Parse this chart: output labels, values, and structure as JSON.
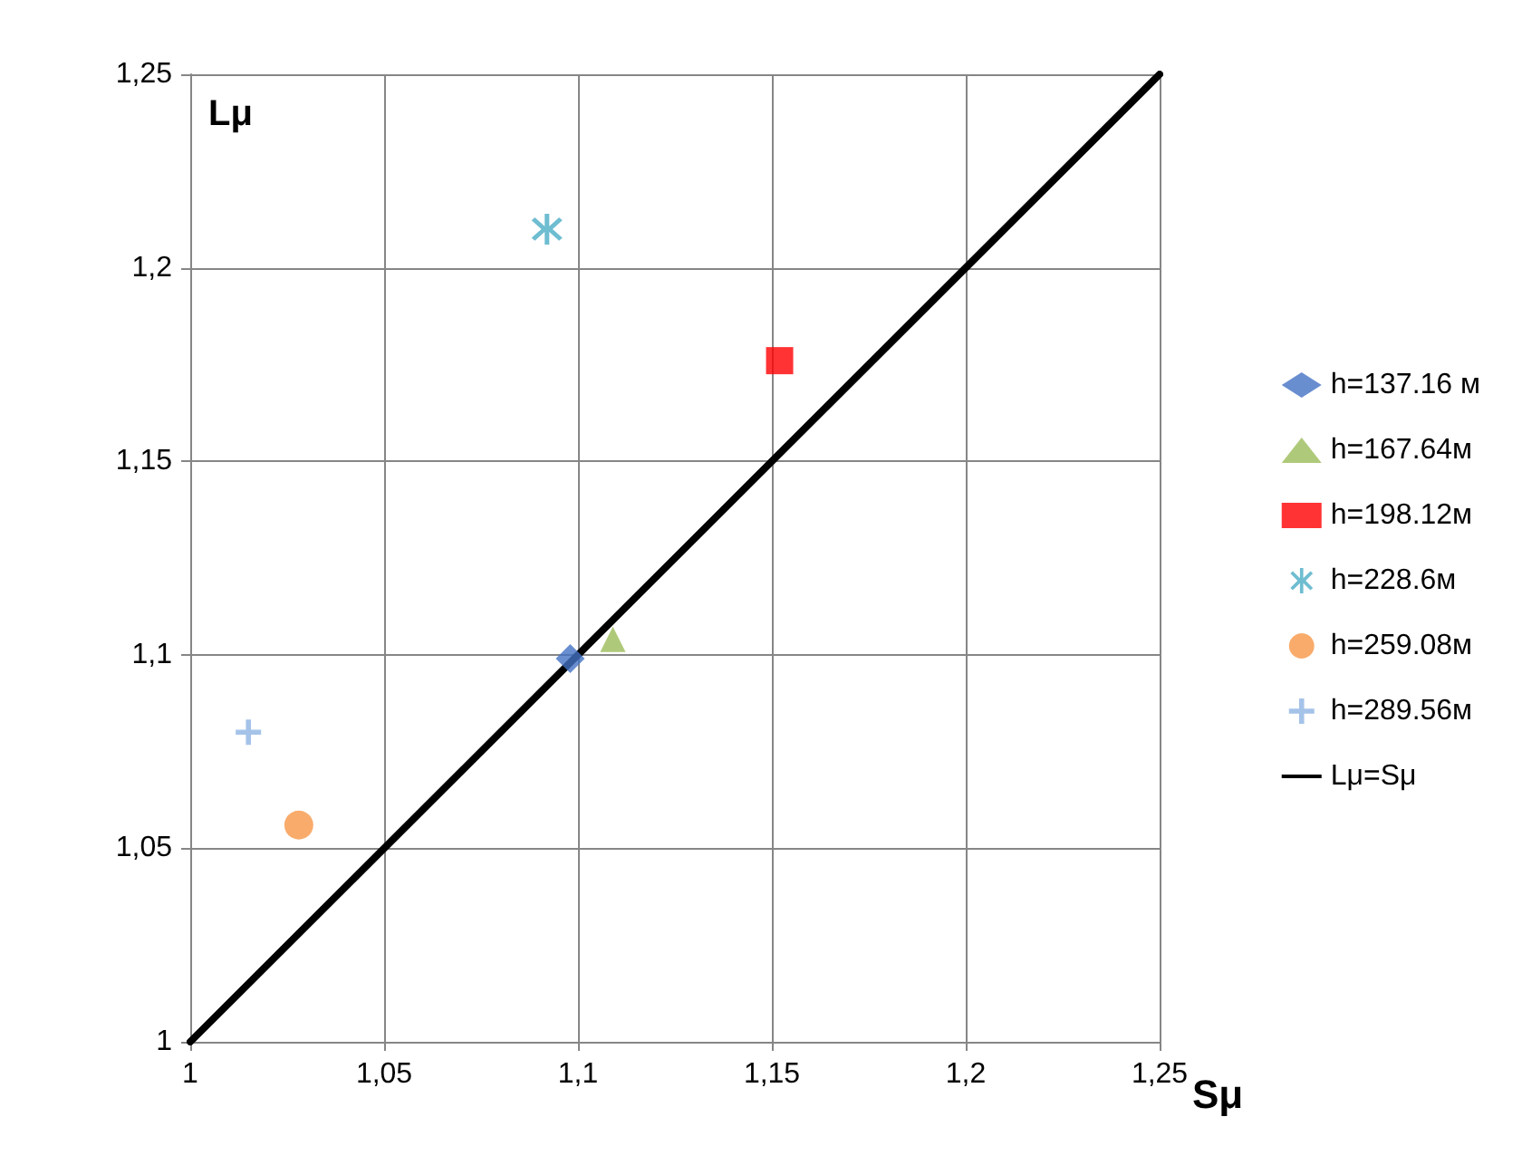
{
  "chart_data": {
    "type": "scatter",
    "xlabel": "Sμ",
    "ylabel": "Lμ",
    "xlim": [
      1,
      1.25
    ],
    "ylim": [
      1,
      1.25
    ],
    "xticks": [
      1,
      {
        "value": 1.05,
        "label": "1,05"
      },
      {
        "value": 1.1,
        "label": "1,1"
      },
      {
        "value": 1.15,
        "label": "1,15"
      },
      {
        "value": 1.2,
        "label": "1,2"
      },
      {
        "value": 1.25,
        "label": "1,25"
      }
    ],
    "yticks": [
      1,
      {
        "value": 1.05,
        "label": "1,05"
      },
      {
        "value": 1.1,
        "label": "1,1"
      },
      {
        "value": 1.15,
        "label": "1,15"
      },
      {
        "value": 1.2,
        "label": "1,2"
      },
      {
        "value": 1.25,
        "label": "1,25"
      }
    ],
    "grid": true,
    "legend": "right",
    "series": [
      {
        "name": "h=137.16 м",
        "marker": "diamond",
        "color": "#4472c4",
        "x": [
          1.098
        ],
        "values": [
          1.099
        ]
      },
      {
        "name": "h=167.64м",
        "marker": "triangle",
        "color": "#9bbb59",
        "x": [
          1.109
        ],
        "values": [
          1.104
        ]
      },
      {
        "name": "h=198.12м",
        "marker": "square",
        "color": "#ff0000",
        "x": [
          1.152
        ],
        "values": [
          1.176
        ]
      },
      {
        "name": "h=228.6м",
        "marker": "star",
        "color": "#4bacc6",
        "x": [
          1.092
        ],
        "values": [
          1.21
        ]
      },
      {
        "name": "h=259.08м",
        "marker": "circle",
        "color": "#f79646",
        "x": [
          1.028
        ],
        "values": [
          1.056
        ]
      },
      {
        "name": "h=289.56м",
        "marker": "cross",
        "color": "#8eb4e3",
        "x": [
          1.015
        ],
        "values": [
          1.08
        ]
      },
      {
        "name": "Lμ=Sμ",
        "type": "line",
        "marker": "none",
        "line_style": "solid",
        "color": "#000000",
        "x": [
          1,
          1.25
        ],
        "values": [
          1,
          1.25
        ]
      }
    ]
  }
}
